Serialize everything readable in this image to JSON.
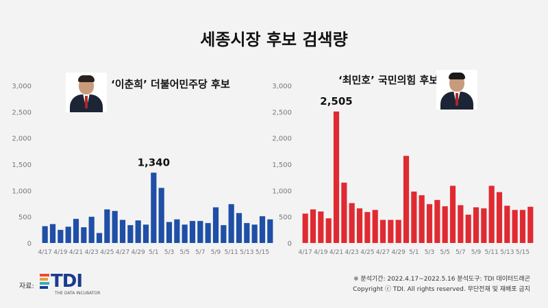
{
  "title": "세종시장 후보 검색량",
  "colors": {
    "left": "#1f4fa6",
    "right": "#e02a32",
    "background": "#f3f3f3"
  },
  "chart_data": [
    {
      "type": "bar",
      "candidate_label": "‘이춘희’ 더불어민주당 후보",
      "color": "#1f4fa6",
      "ylim": [
        0,
        3000
      ],
      "yticks": [
        "3,000",
        "2,500",
        "2,000",
        "1,500",
        "1,000",
        "500",
        "0"
      ],
      "xtick_labels": [
        "4/17",
        "4/19",
        "4/21",
        "4/23",
        "4/25",
        "4/27",
        "4/29",
        "5/1",
        "5/3",
        "5/5",
        "5/7",
        "5/9",
        "5/11",
        "5/13",
        "5/15"
      ],
      "categories": [
        "4/17",
        "4/18",
        "4/19",
        "4/20",
        "4/21",
        "4/22",
        "4/23",
        "4/24",
        "4/25",
        "4/26",
        "4/27",
        "4/28",
        "4/29",
        "4/30",
        "5/1",
        "5/2",
        "5/3",
        "5/4",
        "5/5",
        "5/6",
        "5/7",
        "5/8",
        "5/9",
        "5/10",
        "5/11",
        "5/12",
        "5/13",
        "5/14",
        "5/15",
        "5/16"
      ],
      "values": [
        320,
        360,
        250,
        310,
        460,
        300,
        500,
        190,
        640,
        610,
        440,
        340,
        430,
        350,
        1340,
        1050,
        400,
        450,
        350,
        420,
        420,
        380,
        680,
        340,
        740,
        570,
        380,
        350,
        510,
        450
      ],
      "peak_label": "1,340",
      "peak_index": 14
    },
    {
      "type": "bar",
      "candidate_label": "‘최민호’ 국민의힘 후보",
      "color": "#e02a32",
      "ylim": [
        0,
        3000
      ],
      "yticks": [
        "3,000",
        "2,500",
        "2,000",
        "1,500",
        "1,000",
        "500",
        "0"
      ],
      "xtick_labels": [
        "4/17",
        "4/19",
        "4/21",
        "4/23",
        "4/25",
        "4/27",
        "4/29",
        "5/1",
        "5/3",
        "5/5",
        "5/7",
        "5/9",
        "5/11",
        "5/13",
        "5/15"
      ],
      "categories": [
        "4/17",
        "4/18",
        "4/19",
        "4/20",
        "4/21",
        "4/22",
        "4/23",
        "4/24",
        "4/25",
        "4/26",
        "4/27",
        "4/28",
        "4/29",
        "4/30",
        "5/1",
        "5/2",
        "5/3",
        "5/4",
        "5/5",
        "5/6",
        "5/7",
        "5/8",
        "5/9",
        "5/10",
        "5/11",
        "5/12",
        "5/13",
        "5/14",
        "5/15",
        "5/16"
      ],
      "values": [
        560,
        640,
        600,
        470,
        2505,
        1150,
        760,
        660,
        590,
        630,
        440,
        440,
        440,
        1660,
        980,
        910,
        740,
        820,
        700,
        1090,
        720,
        540,
        680,
        660,
        1090,
        970,
        710,
        630,
        630,
        690
      ],
      "peak_label": "2,505",
      "peak_index": 4
    }
  ],
  "source_label": "자료:",
  "logo": {
    "text": "TDI",
    "subtitle": "THE DATA INCUBATOR"
  },
  "footer": {
    "line1": "※ 분석기간: 2022.4.17~2022.5.16  분석도구: TDI 데이터드래곤",
    "line2": "Copyright ⓒ TDI. All rights reserved. 무단전재 및 재배포 금지"
  }
}
